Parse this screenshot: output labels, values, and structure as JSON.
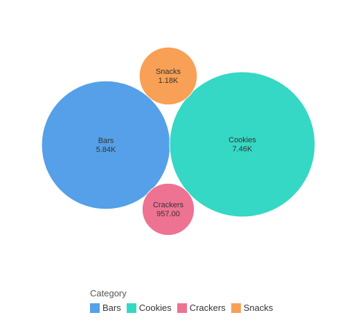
{
  "chart_data": {
    "type": "bubble",
    "legend_title": "Category",
    "legend_position": "bottom-left",
    "series": [
      {
        "name": "Bars",
        "value": 5840,
        "label": "5.84K",
        "color": "#55A0E8"
      },
      {
        "name": "Cookies",
        "value": 7460,
        "label": "7.46K",
        "color": "#35D8C4"
      },
      {
        "name": "Crackers",
        "value": 957,
        "label": "957.00",
        "color": "#EE7292"
      },
      {
        "name": "Snacks",
        "value": 1180,
        "label": "1.18K",
        "color": "#F8A055"
      }
    ]
  }
}
